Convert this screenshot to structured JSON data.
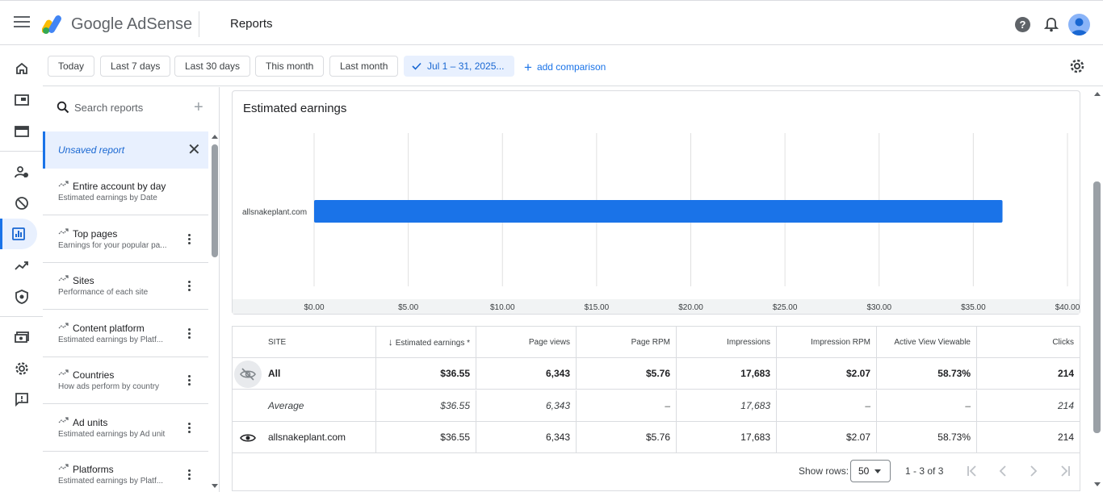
{
  "app": {
    "brand": "Google AdSense",
    "page_title": "Reports"
  },
  "filters": {
    "chips": [
      "Today",
      "Last 7 days",
      "Last 30 days",
      "This month",
      "Last month"
    ],
    "selected_range": "Jul 1 – 31, 2025...",
    "add_comparison": "add comparison"
  },
  "sidebar": {
    "search_placeholder": "Search reports",
    "unsaved_label": "Unsaved report",
    "items": [
      {
        "title": "Entire account by day",
        "subtitle": "Estimated earnings by Date",
        "has_menu": false
      },
      {
        "title": "Top pages",
        "subtitle": "Earnings for your popular pa...",
        "has_menu": true
      },
      {
        "title": "Sites",
        "subtitle": "Performance of each site",
        "has_menu": true
      },
      {
        "title": "Content platform",
        "subtitle": "Estimated earnings by Platf...",
        "has_menu": true
      },
      {
        "title": "Countries",
        "subtitle": "How ads perform by country",
        "has_menu": true
      },
      {
        "title": "Ad units",
        "subtitle": "Estimated earnings by Ad unit",
        "has_menu": true
      },
      {
        "title": "Platforms",
        "subtitle": "Estimated earnings by Platf...",
        "has_menu": true
      }
    ]
  },
  "chart": {
    "title": "Estimated earnings"
  },
  "chart_data": {
    "type": "bar",
    "orientation": "horizontal",
    "title": "Estimated earnings",
    "categories": [
      "allsnakeplant.com"
    ],
    "values": [
      36.55
    ],
    "xlim": [
      0,
      40
    ],
    "x_ticks": [
      "$0.00",
      "$5.00",
      "$10.00",
      "$15.00",
      "$20.00",
      "$25.00",
      "$30.00",
      "$35.00",
      "$40.00"
    ],
    "grid": true,
    "bar_color": "#1a73e8"
  },
  "table": {
    "headers": [
      "SITE",
      "Estimated earnings *",
      "Page views",
      "Page RPM",
      "Impressions",
      "Impression RPM",
      "Active View Viewable",
      "Clicks"
    ],
    "rows": [
      {
        "name": "All",
        "values": [
          "$36.55",
          "6,343",
          "$5.76",
          "17,683",
          "$2.07",
          "58.73%",
          "214"
        ]
      },
      {
        "name": "Average",
        "values": [
          "$36.55",
          "6,343",
          "–",
          "17,683",
          "–",
          "–",
          "214"
        ]
      },
      {
        "name": "allsnakeplant.com",
        "values": [
          "$36.55",
          "6,343",
          "$5.76",
          "17,683",
          "$2.07",
          "58.73%",
          "214"
        ]
      }
    ],
    "show_rows_label": "Show rows:",
    "rows_per_page": "50",
    "range_text": "1 - 3 of 3"
  },
  "colors": {
    "accent": "#1a73e8",
    "selected_bg": "#e8f0fe"
  }
}
